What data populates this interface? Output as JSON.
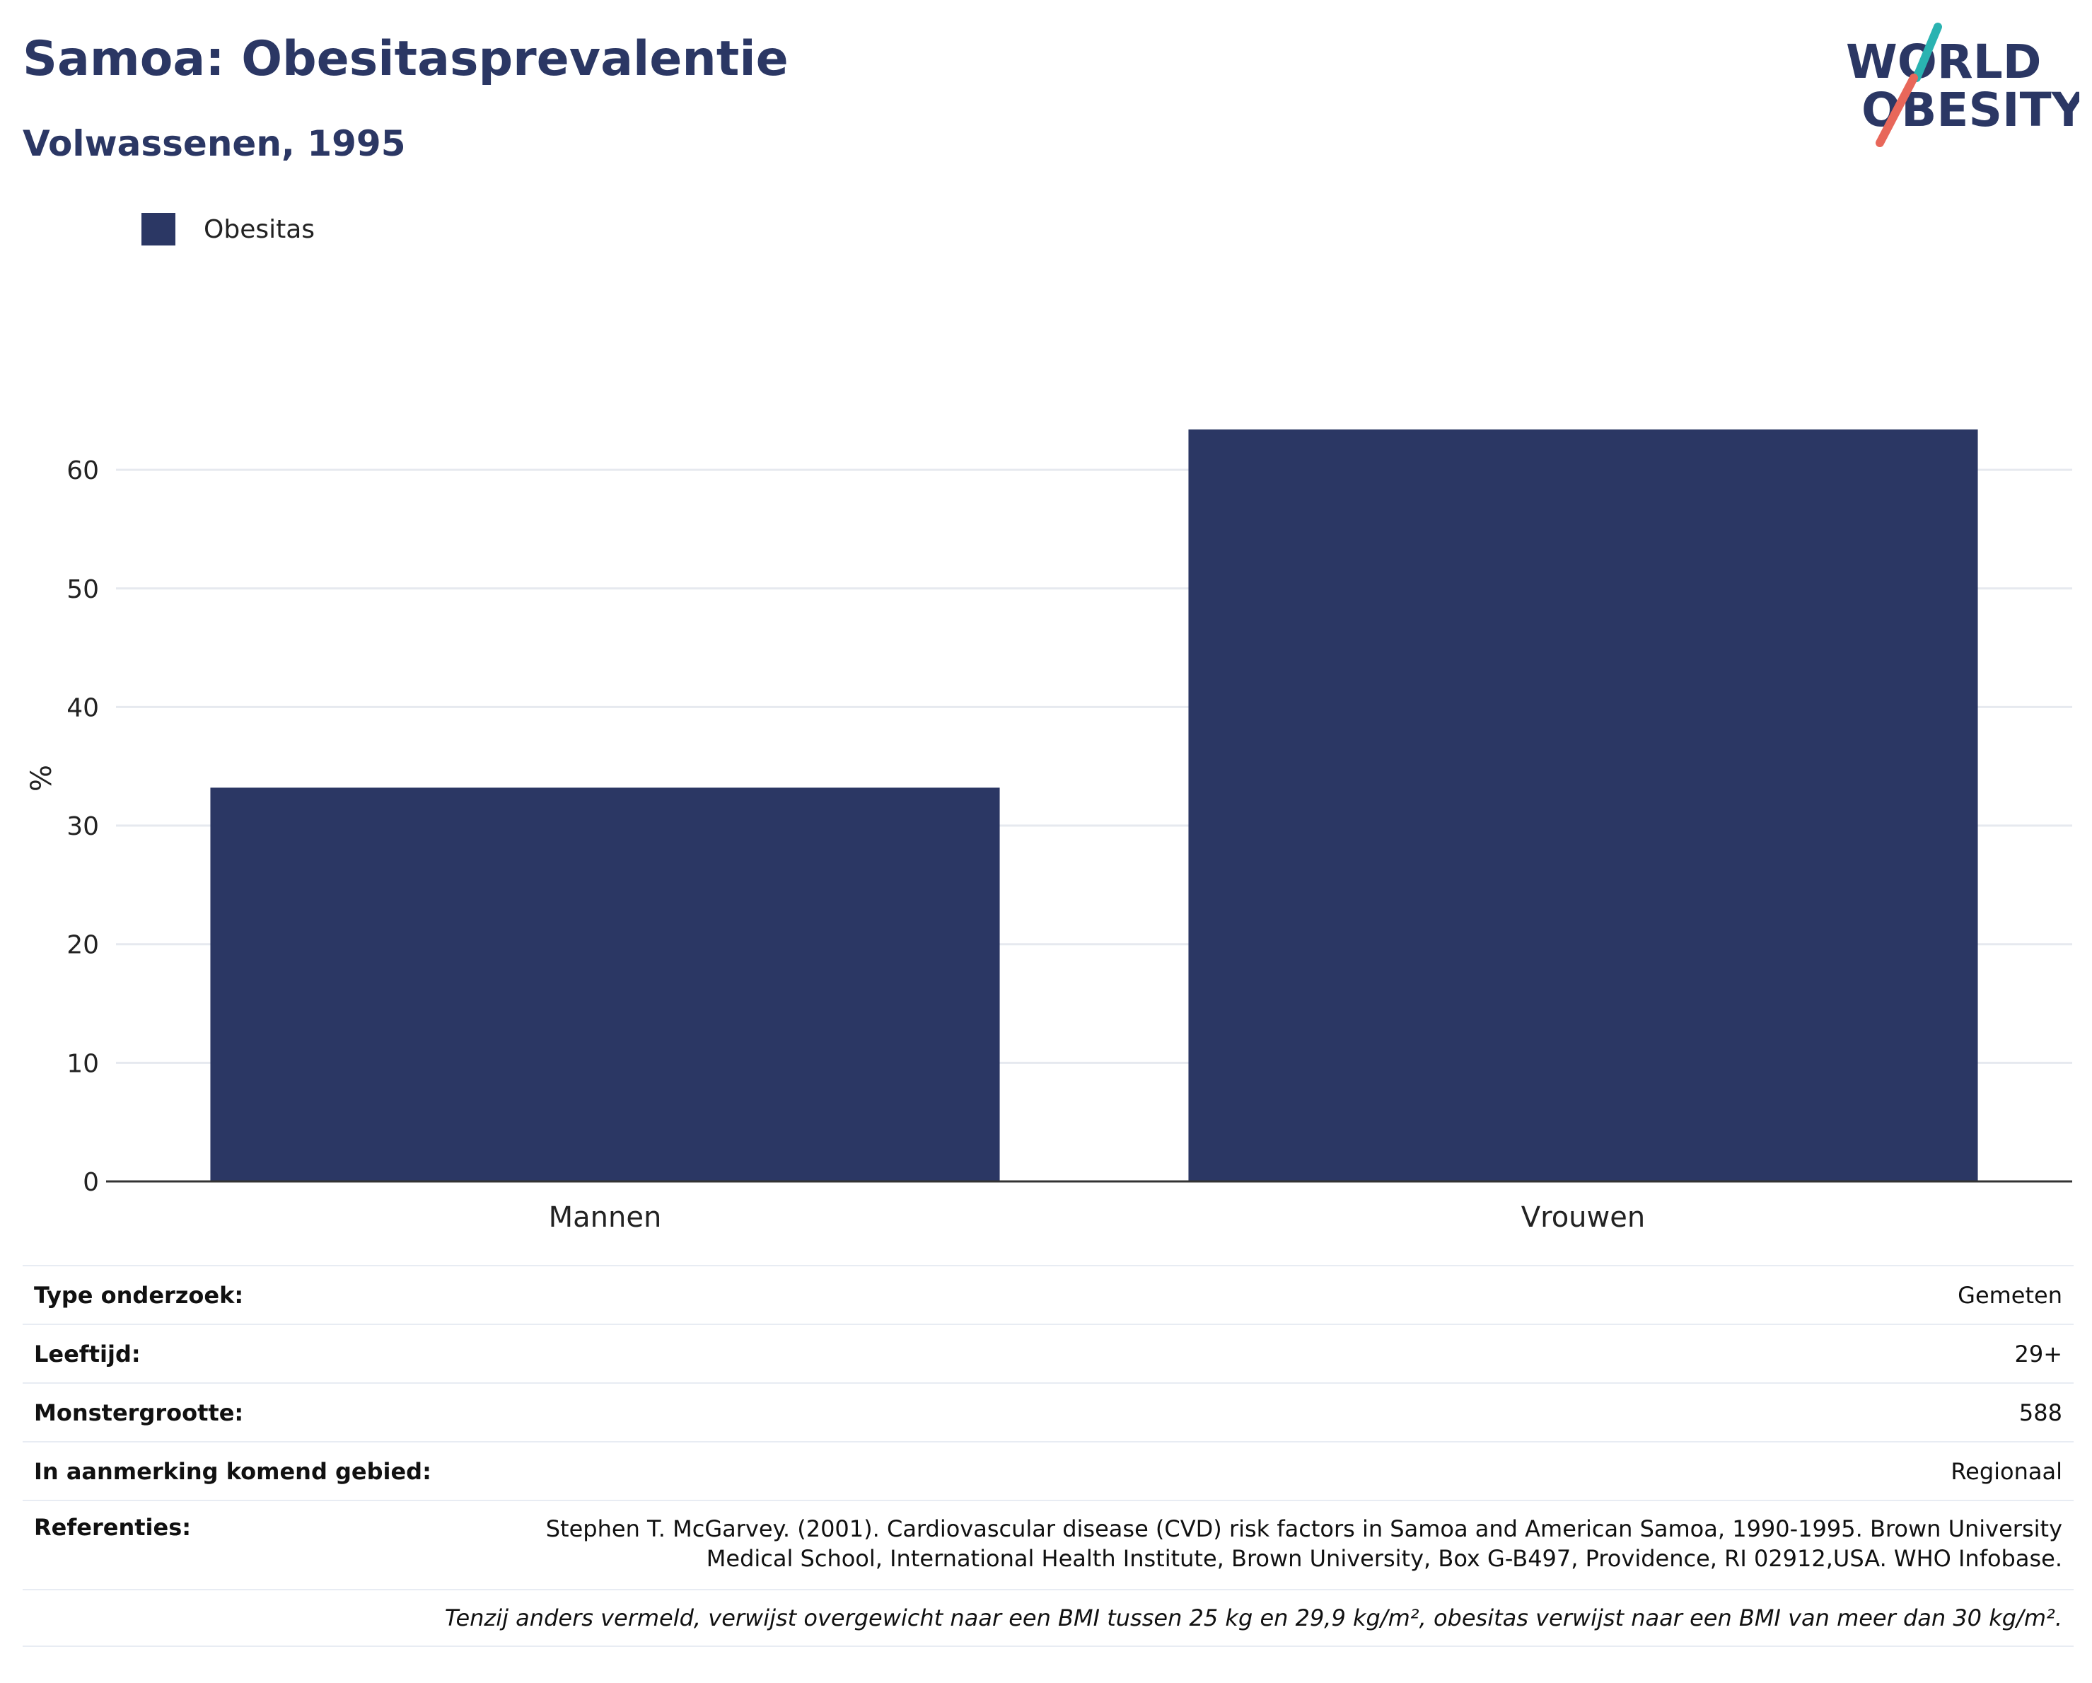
{
  "title": "Samoa: Obesitasprevalentie",
  "subtitle": "Volwassenen, 1995",
  "logo": {
    "line1": "WORLD",
    "line2": "OBESITY"
  },
  "colors": {
    "bar": "#2b3764",
    "title": "#2b3764",
    "grid": "#e6e9ef",
    "logo_text": "#2b3764",
    "logo_teal": "#2ab3b1",
    "logo_coral": "#e8675a"
  },
  "legend": {
    "label": "Obesitas"
  },
  "chart_data": {
    "type": "bar",
    "categories": [
      "Mannen",
      "Vrouwen"
    ],
    "series": [
      {
        "name": "Obesitas",
        "values": [
          33.2,
          63.4
        ]
      }
    ],
    "ylabel": "%",
    "xlabel": "",
    "ylim": [
      0,
      68
    ],
    "yticks": [
      0,
      10,
      20,
      30,
      40,
      50,
      60
    ],
    "grid": true,
    "legend_position": "top-left"
  },
  "info": {
    "rows": [
      {
        "key": "Type onderzoek:",
        "value": "Gemeten"
      },
      {
        "key": "Leeftijd:",
        "value": "29+"
      },
      {
        "key": "Monstergrootte:",
        "value": "588"
      },
      {
        "key": "In aanmerking komend gebied:",
        "value": "Regionaal"
      }
    ],
    "references_key": "Referenties:",
    "references": "Stephen T. McGarvey. (2001). Cardiovascular disease (CVD) risk factors in Samoa and American Samoa, 1990-1995. Brown University Medical School, International Health Institute, Brown University, Box G-B497, Providence, RI 02912,USA. WHO Infobase.",
    "note": "Tenzij anders vermeld, verwijst overgewicht naar een BMI tussen 25 kg en 29,9 kg/m², obesitas verwijst naar een BMI van meer dan 30 kg/m²."
  }
}
